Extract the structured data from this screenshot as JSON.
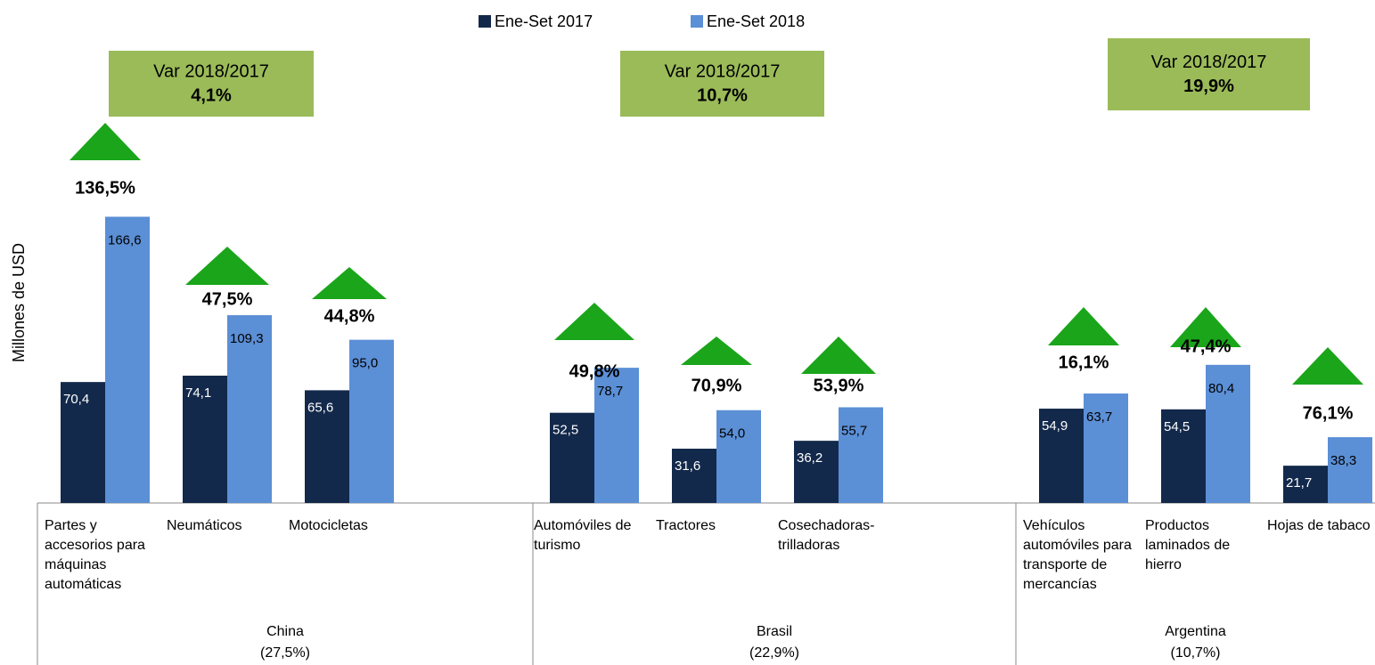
{
  "chart_data": {
    "type": "bar",
    "y_label": "Millones de USD",
    "legend": "top",
    "categories": [
      "Partes y accesorios para máquinas automáticas",
      "Neumáticos",
      "Motocicletas",
      "Automóviles de turismo",
      "Tractores",
      "Cosechadoras-trilladoras",
      "Vehículos automóviles para transporte de mercancías",
      "Productos laminados de hierro",
      "Hojas de tabaco"
    ],
    "groups": [
      {
        "name": "China",
        "share": "(27,5%)",
        "var_label": "Var 2018/2017",
        "var_value": "4,1%"
      },
      {
        "name": "Brasil",
        "share": "(22,9%)",
        "var_label": "Var 2018/2017",
        "var_value": "10,7%"
      },
      {
        "name": "Argentina",
        "share": "(10,7%)",
        "var_label": "Var 2018/2017",
        "var_value": "19,9%"
      }
    ],
    "series": [
      {
        "name": "Ene-Set 2017",
        "color": "#13294b",
        "values": [
          70.4,
          74.1,
          65.6,
          52.5,
          31.6,
          36.2,
          54.9,
          54.5,
          21.7
        ],
        "value_labels": [
          "70,4",
          "74,1",
          "65,6",
          "52,5",
          "31,6",
          "36,2",
          "54,9",
          "54,5",
          "21,7"
        ]
      },
      {
        "name": "Ene-Set 2018",
        "color": "#5b8fd6",
        "values": [
          166.6,
          109.3,
          95.0,
          78.7,
          54.0,
          55.7,
          63.7,
          80.4,
          38.3
        ],
        "value_labels": [
          "166,6",
          "109,3",
          "95,0",
          "78,7",
          "54,0",
          "55,7",
          "63,7",
          "80,4",
          "38,3"
        ]
      }
    ],
    "changes": [
      "136,5%",
      "47,5%",
      "44,8%",
      "49,8%",
      "70,9%",
      "53,9%",
      "16,1%",
      "47,4%",
      "76,1%"
    ],
    "change_color": "#1aa51a",
    "var_box_color": "#9bbb59",
    "ylim": [
      0,
      200
    ]
  }
}
